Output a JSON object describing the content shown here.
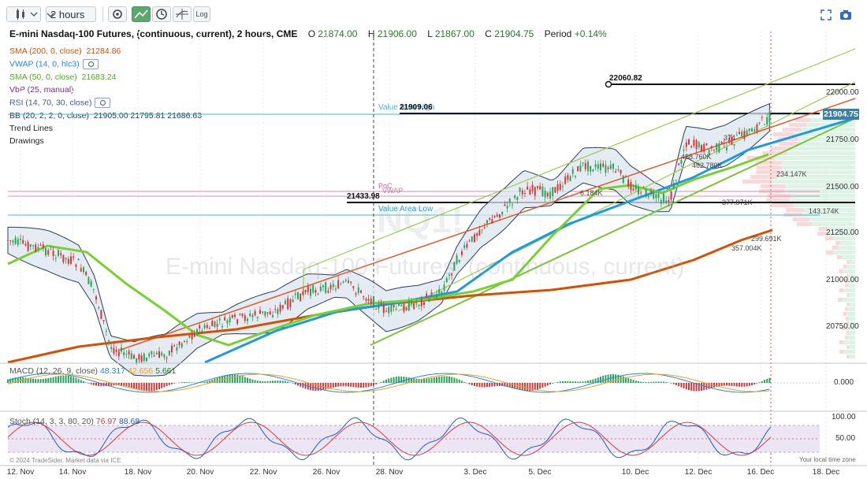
{
  "toolbar": {
    "chart_type_icon": "candlestick-icon",
    "interval": "2 hours",
    "settings_icon": "gear-icon",
    "trend_tool_icon": "trend-line-icon",
    "clock_icon": "clock-icon",
    "crosshair_icon": "crosshair-icon",
    "log_label": "Log",
    "fullscreen_icon": "fullscreen-icon",
    "snapshot_icon": "camera-icon"
  },
  "header": {
    "title": "E-mini Nasdaq-100 Futures, (continuous, current), 2 hours, CME",
    "o_label": "O",
    "o": "21874.00",
    "h_label": "H",
    "h": "21906.00",
    "l_label": "L",
    "l": "21867.00",
    "c_label": "C",
    "c": "21904.75",
    "period_label": "Period",
    "period": "+0.14%"
  },
  "indicators": [
    {
      "name": "SMA (200, 0, close)",
      "value": "21284.86",
      "color": "#d94f00"
    },
    {
      "name": "VWAP (14, 0, hlc3)",
      "value": "",
      "color": "#1e88e5"
    },
    {
      "name": "SMA (50, 0, close)",
      "value": "21683.24",
      "color": "#6fcf27"
    },
    {
      "name": "VbP (25, manual)",
      "value": "",
      "color": "#7b2a8a"
    },
    {
      "name": "RSI (14, 70, 30, close)",
      "value": "",
      "color": "#3b5a94"
    },
    {
      "name": "BB (20, 2, 2, 0, close)",
      "value": "21905.00  21795.81  21686.63",
      "color": "#1f3a5a"
    },
    {
      "name": "Trend Lines",
      "value": "",
      "color": "#222222"
    },
    {
      "name": "Drawings",
      "value": "",
      "color": "#222222"
    }
  ],
  "price_axis": [
    "22000.00",
    "21750.00",
    "21500.00",
    "21250.00",
    "21000.00",
    "20750.00"
  ],
  "last_price": "21904.75",
  "levels": {
    "level1": "22060.82",
    "level2": "21909.06",
    "level3": "21433.98",
    "value_area_high": "Value Area High",
    "value_area_low": "Value Area Low",
    "poc": "PoC",
    "vwap": "VWAP"
  },
  "volume_labels": [
    "234.147K",
    "143.174K",
    "299.691K",
    "357.004K",
    "377.971K",
    "488.760K",
    "462.780K",
    "6.184K",
    "6.184K",
    "374"
  ],
  "watermark_symbol": "NQ1!",
  "watermark": "E-mini Nasdaq-100 Futures, (continuous, current)",
  "macd": {
    "label": "MACD (12, 26, 9, close)",
    "v1": "48.317",
    "v2": "42.656",
    "v3": "5.661",
    "axis": "0.000"
  },
  "stoch": {
    "label": "Stoch (14, 3, 3, 80, 20)",
    "v1": "76.97",
    "v2": "88.68",
    "axis_top": "100.00",
    "axis_mid": "50.00"
  },
  "x_axis": [
    "12. Nov",
    "14. Nov",
    "18. Nov",
    "20. Nov",
    "22. Nov",
    "26. Nov",
    "28. Nov",
    "3. Dec",
    "5. Dec",
    "10. Dec",
    "12. Dec",
    "16. Dec",
    "18. Dec"
  ],
  "footer": {
    "copyright": "© 2024 TradeSider. Market data via ICE",
    "local_time": "Your local time zone"
  },
  "colors": {
    "sma200": "#d94f00",
    "vwap": "#1e88e5",
    "sma50": "#6fcf27",
    "up": "#2ea35a",
    "down": "#d13a3a",
    "bb_fill": "#dbe4ee"
  }
}
